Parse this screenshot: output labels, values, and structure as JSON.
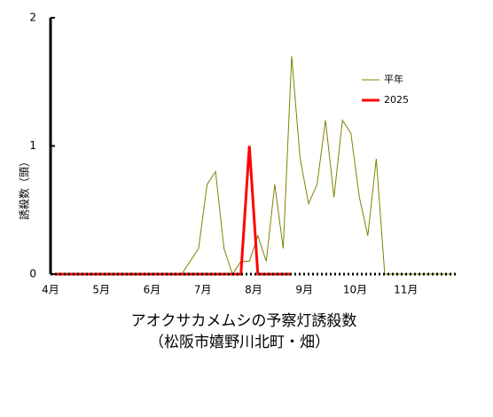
{
  "chart_data": {
    "type": "line",
    "title": "アオクサカメムシの予察灯誘殺数",
    "subtitle": "（松阪市嬉野川北町・畑）",
    "y_label": "誘殺数（頭）",
    "categories": [
      "4月",
      null,
      null,
      null,
      null,
      null,
      "5月",
      null,
      null,
      null,
      null,
      null,
      "6月",
      null,
      null,
      null,
      null,
      null,
      "7月",
      null,
      null,
      null,
      null,
      null,
      "8月",
      null,
      null,
      null,
      null,
      null,
      "9月",
      null,
      null,
      null,
      null,
      null,
      "10月",
      null,
      null,
      null,
      null,
      null,
      "11月",
      null,
      null,
      null,
      null,
      null
    ],
    "series": [
      {
        "name": "平年",
        "color": "#808000",
        "width": 1,
        "values": [
          0,
          0,
          0,
          0,
          0,
          0,
          0,
          0,
          0,
          0,
          0,
          0,
          0,
          0,
          0,
          0,
          0.1,
          0.2,
          0.7,
          0.8,
          0.2,
          0,
          0.1,
          0.1,
          0.3,
          0.1,
          0.7,
          0.2,
          1.7,
          0.9,
          0.55,
          0.7,
          1.2,
          0.6,
          1.2,
          1.1,
          0.6,
          0.3,
          0.9,
          0,
          0,
          0,
          0,
          0,
          0,
          0,
          0,
          0
        ]
      },
      {
        "name": "2025",
        "color": "#ff0000",
        "width": 3,
        "values": [
          0,
          0,
          0,
          0,
          0,
          0,
          0,
          0,
          0,
          0,
          0,
          0,
          0,
          0,
          0,
          0,
          0,
          0,
          0,
          0,
          0,
          0,
          0,
          1,
          0,
          0,
          0,
          0,
          0,
          null,
          null,
          null,
          null,
          null,
          null,
          null,
          null,
          null,
          null,
          null,
          null,
          null,
          null,
          null,
          null,
          null,
          null,
          null
        ]
      }
    ],
    "ylim": [
      0,
      2
    ],
    "yticks": [
      0,
      1,
      2
    ],
    "grid": false
  }
}
